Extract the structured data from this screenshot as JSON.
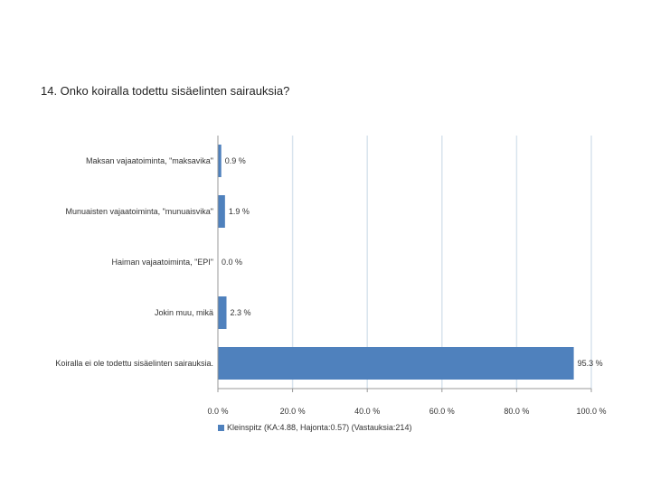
{
  "question": "14. Onko koiralla todettu sisäelinten sairauksia?",
  "chart_data": {
    "type": "bar",
    "orientation": "horizontal",
    "categories": [
      "Maksan vajaatoiminta, \"maksavika\"",
      "Munuaisten vajaatoiminta, \"munuaisvika\"",
      "Haiman vajaatoiminta, \"EPI\"",
      "Jokin muu, mikä",
      "Koiralla ei ole todettu sisäelinten sairauksia."
    ],
    "series": [
      {
        "name": "Kleinspitz (KA:4.88, Hajonta:0.57) (Vastauksia:214)",
        "values": [
          0.9,
          1.9,
          0.0,
          2.3,
          95.3
        ],
        "data_labels": [
          "0.9 %",
          "1.9 %",
          "0.0 %",
          "2.3 %",
          "95.3 %"
        ]
      }
    ],
    "xlim": [
      0,
      100
    ],
    "xticks": [
      0,
      20,
      40,
      60,
      80,
      100
    ],
    "xtick_labels": [
      "0.0 %",
      "20.0 %",
      "40.0 %",
      "60.0 %",
      "80.0 %",
      "100.0 %"
    ],
    "grid": true,
    "legend_position": "bottom",
    "colors": {
      "bar": "#4f81bd",
      "grid": "#d9e4ee",
      "axis": "#999999"
    }
  }
}
